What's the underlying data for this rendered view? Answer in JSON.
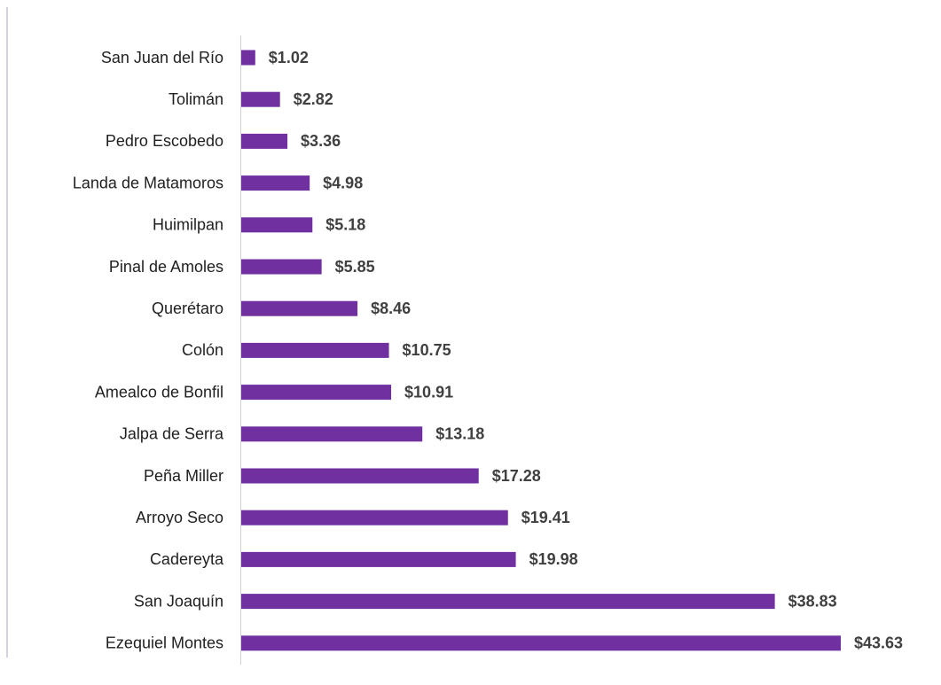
{
  "chart_data": {
    "type": "barh",
    "categories": [
      "San Juan del Río",
      "Tolimán",
      "Pedro Escobedo",
      "Landa de Matamoros",
      "Huimilpan",
      "Pinal de Amoles",
      "Querétaro",
      "Colón",
      "Amealco de Bonfil",
      "Jalpa de Serra",
      "Peña Miller",
      "Arroyo Seco",
      "Cadereyta",
      "San Joaquín",
      "Ezequiel Montes"
    ],
    "values": [
      1.02,
      2.82,
      3.36,
      4.98,
      5.18,
      5.85,
      8.46,
      10.75,
      10.91,
      13.18,
      17.28,
      19.41,
      19.98,
      38.83,
      43.63
    ],
    "value_labels": [
      "$1.02",
      "$2.82",
      "$3.36",
      "$4.98",
      "$5.18",
      "$5.85",
      "$8.46",
      "$10.75",
      "$10.91",
      "$13.18",
      "$17.28",
      "$19.41",
      "$19.98",
      "$38.83",
      "$43.63"
    ],
    "color": "#7030a0"
  }
}
